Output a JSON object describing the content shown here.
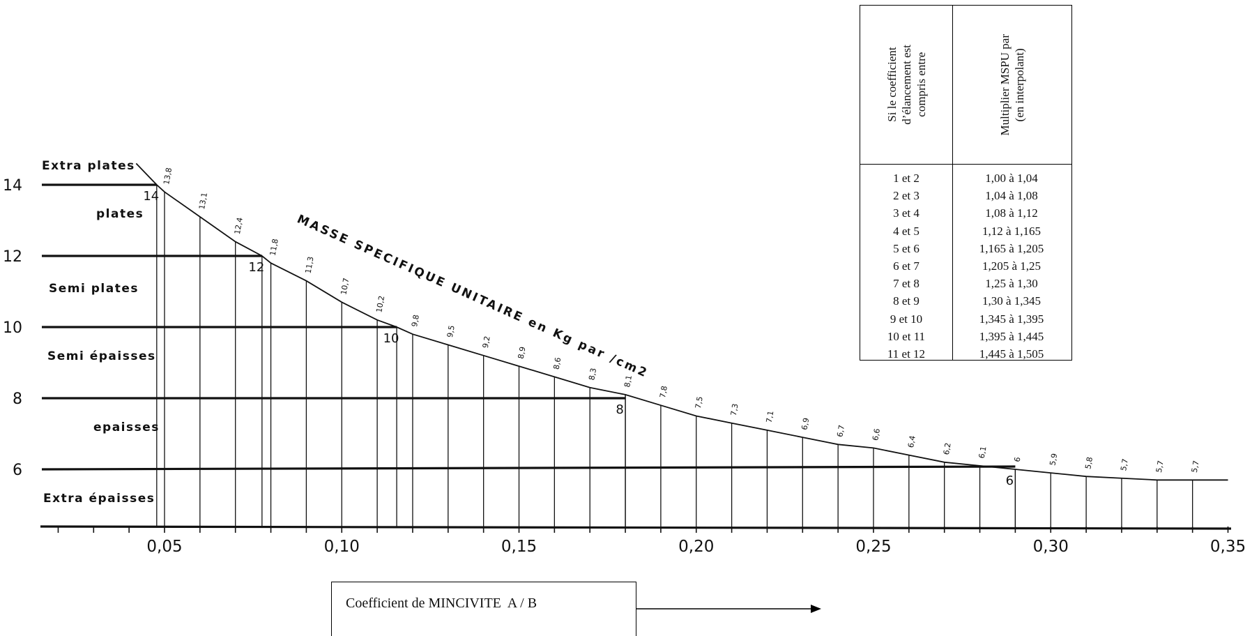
{
  "chart_data": {
    "type": "line",
    "title": "MASSE SPECIFIQUE UNITAIRE en Kg par /cm2",
    "xlabel": "Coefficient de MINCIVITE  A / B",
    "ylabel": "",
    "xlim": [
      0.01,
      0.36
    ],
    "ylim": [
      4.5,
      16.2
    ],
    "x_ticks": [
      {
        "value": 0.05,
        "label": "0,05"
      },
      {
        "value": 0.1,
        "label": "0,10"
      },
      {
        "value": 0.15,
        "label": "0,15"
      },
      {
        "value": 0.2,
        "label": "0,20"
      },
      {
        "value": 0.25,
        "label": "0,25"
      },
      {
        "value": 0.3,
        "label": "0,30"
      },
      {
        "value": 0.35,
        "label": "0,35"
      }
    ],
    "y_ticks": [
      {
        "value": 14,
        "label": "14"
      },
      {
        "value": 12,
        "label": "12"
      },
      {
        "value": 10,
        "label": "10"
      },
      {
        "value": 8,
        "label": "8"
      },
      {
        "value": 6,
        "label": "6"
      }
    ],
    "curve": {
      "x": [
        0.0478,
        0.05,
        0.06,
        0.07,
        0.0775,
        0.08,
        0.09,
        0.1,
        0.11,
        0.1155,
        0.12,
        0.13,
        0.14,
        0.15,
        0.16,
        0.17,
        0.18,
        0.19,
        0.2,
        0.21,
        0.22,
        0.23,
        0.24,
        0.25,
        0.26,
        0.27,
        0.28,
        0.29,
        0.3,
        0.31,
        0.32,
        0.33,
        0.34,
        0.35
      ],
      "y": [
        14,
        13.8,
        13.1,
        12.4,
        12,
        11.8,
        11.3,
        10.7,
        10.2,
        10,
        9.8,
        9.5,
        9.2,
        8.9,
        8.6,
        8.3,
        8.1,
        7.8,
        7.5,
        7.3,
        7.1,
        6.9,
        6.7,
        6.6,
        6.4,
        6.2,
        6.1,
        6,
        5.9,
        5.8,
        5.75,
        5.7,
        5.7,
        5.7
      ]
    },
    "value_labels": [
      {
        "x": 0.05,
        "label": "13,8"
      },
      {
        "x": 0.06,
        "label": "13,1"
      },
      {
        "x": 0.07,
        "label": "12,4"
      },
      {
        "x": 0.08,
        "label": "11,8"
      },
      {
        "x": 0.09,
        "label": "11,3"
      },
      {
        "x": 0.1,
        "label": "10,7"
      },
      {
        "x": 0.11,
        "label": "10,2"
      },
      {
        "x": 0.12,
        "label": "9,8"
      },
      {
        "x": 0.13,
        "label": "9,5"
      },
      {
        "x": 0.14,
        "label": "9,2"
      },
      {
        "x": 0.15,
        "label": "8,9"
      },
      {
        "x": 0.16,
        "label": "8,6"
      },
      {
        "x": 0.17,
        "label": "8,3"
      },
      {
        "x": 0.18,
        "label": "8,1"
      },
      {
        "x": 0.19,
        "label": "7,8"
      },
      {
        "x": 0.2,
        "label": "7,5"
      },
      {
        "x": 0.21,
        "label": "7,3"
      },
      {
        "x": 0.22,
        "label": "7,1"
      },
      {
        "x": 0.23,
        "label": "6,9"
      },
      {
        "x": 0.24,
        "label": "6,7"
      },
      {
        "x": 0.25,
        "label": "6,6"
      },
      {
        "x": 0.26,
        "label": "6,4"
      },
      {
        "x": 0.27,
        "label": "6,2"
      },
      {
        "x": 0.28,
        "label": "6,1"
      },
      {
        "x": 0.29,
        "label": "6"
      },
      {
        "x": 0.3,
        "label": "5,9"
      },
      {
        "x": 0.31,
        "label": "5,8"
      },
      {
        "x": 0.32,
        "label": "5,7"
      },
      {
        "x": 0.33,
        "label": "5,7"
      },
      {
        "x": 0.34,
        "label": "5,7"
      }
    ],
    "threshold_lines": [
      {
        "y": 14,
        "x_end": 0.0478,
        "end_label": "14"
      },
      {
        "y": 12,
        "x_end": 0.0775,
        "end_label": "12"
      },
      {
        "y": 10,
        "x_end": 0.1155,
        "end_label": "10"
      },
      {
        "y": 8,
        "x_end": 0.18,
        "end_label": "8"
      },
      {
        "y": 6,
        "x_end": 0.29,
        "end_label": "6"
      }
    ],
    "categories": [
      {
        "name": "Extra plates",
        "y": 14.55
      },
      {
        "name": "plates",
        "y": 13.2
      },
      {
        "name": "Semi plates",
        "y": 11.1
      },
      {
        "name": "Semi épaisses",
        "y": 9.2
      },
      {
        "name": "epaisses",
        "y": 7.2
      },
      {
        "name": "Extra épaisses",
        "y": 5.2
      }
    ]
  },
  "table": {
    "header": [
      [
        "Si le coefficient",
        "d’élancement est",
        "compris entre"
      ],
      [
        "Multiplier MSPU par",
        "(en interpolant)"
      ]
    ],
    "rows": [
      [
        "1 et 2",
        "1,00 à 1,04"
      ],
      [
        "2 et 3",
        "1,04 à 1,08"
      ],
      [
        "3 et 4",
        "1,08 à 1,12"
      ],
      [
        "4 et 5",
        "1,12 à 1,165"
      ],
      [
        "5 et 6",
        "1,165 à 1,205"
      ],
      [
        "6 et 7",
        "1,205 à 1,25"
      ],
      [
        "7 et 8",
        "1,25 à 1,30"
      ],
      [
        "8 et 9",
        "1,30 à 1,345"
      ],
      [
        "9 et 10",
        "1,345 à 1,395"
      ],
      [
        "10 et 11",
        "1,395 à 1,445"
      ],
      [
        "11 et 12",
        "1,445 à 1,505"
      ]
    ]
  },
  "caption": {
    "text": "Coefficient de MINCIVITE  A / B"
  }
}
